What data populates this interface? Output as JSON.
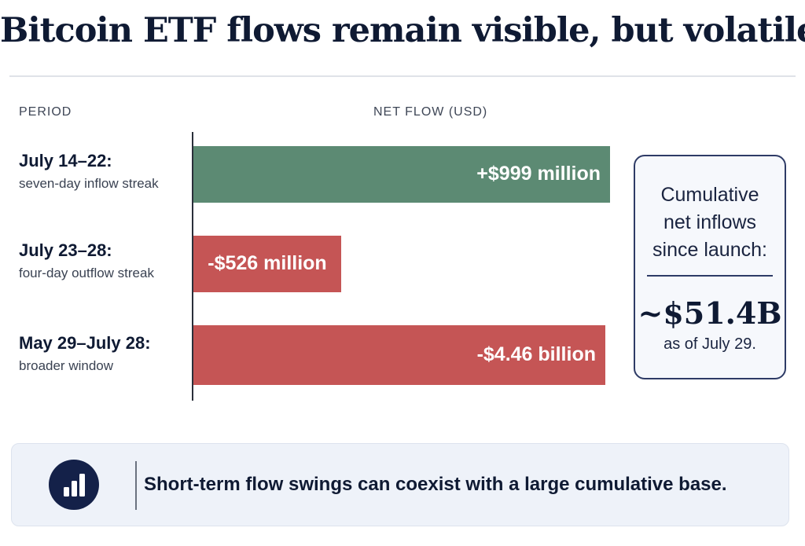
{
  "title": "Bitcoin ETF flows remain visible, but volatile.",
  "columns": {
    "period": "PERIOD",
    "net_flow": "NET FLOW (USD)"
  },
  "chart_data": {
    "type": "bar",
    "orientation": "horizontal",
    "title": "Bitcoin ETF flows remain visible, but volatile.",
    "xlabel": "NET FLOW (USD)",
    "ylabel": "PERIOD",
    "categories": [
      "July 14–22:",
      "July 23–28:",
      "May 29–July 28:"
    ],
    "category_notes": [
      "seven-day inflow streak",
      "four-day outflow streak",
      "broader window"
    ],
    "values_usd_millions": [
      999,
      -526,
      -4460
    ],
    "data_labels": [
      "+$999 million",
      "-$526 million",
      "-$4.46 billion"
    ],
    "bar_fill_fraction": [
      0.96,
      0.34,
      0.95
    ],
    "colors": [
      "#5c8a73",
      "#c55555",
      "#c55555"
    ],
    "grid": false,
    "legend": "none"
  },
  "summary": {
    "title_lines": [
      "Cumulative",
      "net inflows",
      "since launch:"
    ],
    "value": "~$51.4B",
    "note": "as of July 29."
  },
  "footer": {
    "icon": "bar-chart-icon",
    "message": "Short-term flow swings can coexist with a large cumulative base."
  }
}
